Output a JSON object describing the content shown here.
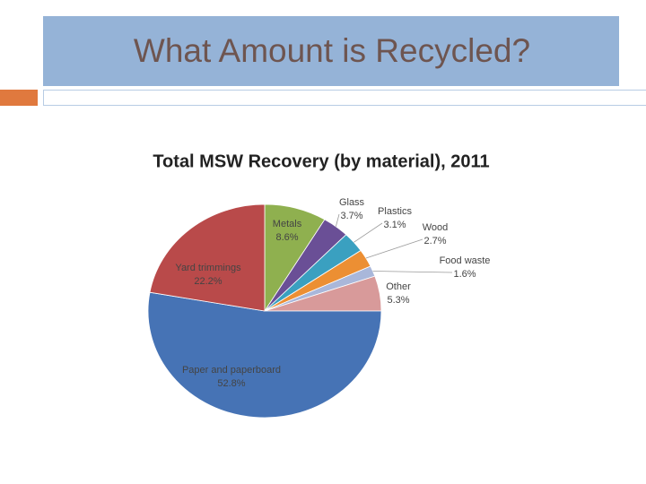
{
  "slide": {
    "title": "What Amount is Recycled?"
  },
  "chart_data": {
    "type": "pie",
    "title": "Total MSW Recovery (by material), 2011",
    "categories": [
      "Metals",
      "Glass",
      "Plastics",
      "Wood",
      "Food waste",
      "Other",
      "Paper and paperboard",
      "Yard trimmings"
    ],
    "values": [
      8.6,
      3.7,
      3.1,
      2.7,
      1.6,
      5.3,
      52.8,
      22.2
    ],
    "value_labels": [
      "8.6%",
      "3.7%",
      "3.1%",
      "2.7%",
      "1.6%",
      "5.3%",
      "52.8%",
      "22.2%"
    ],
    "colors": [
      "#8fb04f",
      "#6a4f96",
      "#3aa0c0",
      "#ec8f33",
      "#a9b7da",
      "#d89a9a",
      "#4673b5",
      "#b94a4a"
    ]
  }
}
